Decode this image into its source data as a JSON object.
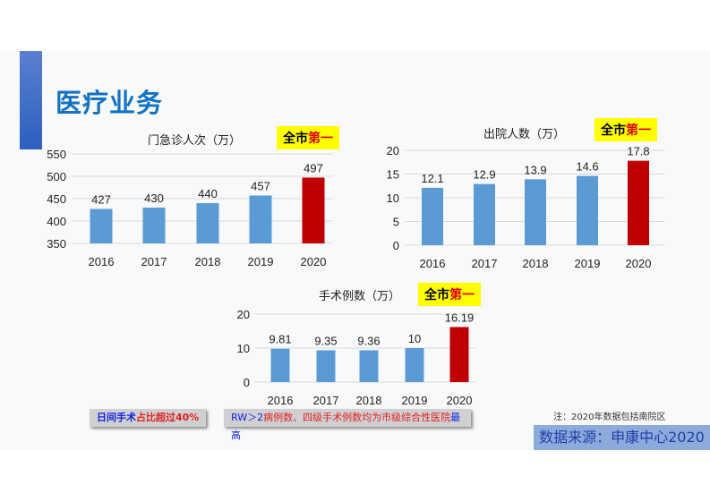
{
  "title": "医疗业务",
  "badge": {
    "part1": "全市",
    "part2": "第一"
  },
  "colors": {
    "normal": "#5b9bd5",
    "highlight": "#c00000"
  },
  "chart_data": [
    {
      "type": "bar",
      "title": "门急诊人次（万）",
      "categories": [
        "2016",
        "2017",
        "2018",
        "2019",
        "2020"
      ],
      "values": [
        427,
        430,
        440,
        457,
        497
      ],
      "labels": [
        "427",
        "430",
        "440",
        "457",
        "497"
      ],
      "ylim": [
        350,
        550
      ],
      "yticks": [
        "350",
        "400",
        "450",
        "500",
        "550"
      ],
      "ytick_values": [
        350,
        400,
        450,
        500,
        550
      ]
    },
    {
      "type": "bar",
      "title": "出院人数（万）",
      "categories": [
        "2016",
        "2017",
        "2018",
        "2019",
        "2020"
      ],
      "values": [
        12.1,
        12.9,
        13.9,
        14.6,
        17.8
      ],
      "labels": [
        "12.1",
        "12.9",
        "13.9",
        "14.6",
        "17.8"
      ],
      "ylim": [
        0,
        20
      ],
      "yticks": [
        "0",
        "5",
        "10",
        "15",
        "20"
      ],
      "ytick_values": [
        0,
        5,
        10,
        15,
        20
      ]
    },
    {
      "type": "bar",
      "title": "手术例数（万）",
      "categories": [
        "2016",
        "2017",
        "2018",
        "2019",
        "2020"
      ],
      "values": [
        9.81,
        9.35,
        9.36,
        10,
        16.19
      ],
      "labels": [
        "9.81",
        "9.35",
        "9.36",
        "10",
        "16.19"
      ],
      "ylim": [
        0,
        20
      ],
      "yticks": [
        "0",
        "10",
        "20"
      ],
      "ytick_values": [
        0,
        10,
        20
      ]
    }
  ],
  "box1": {
    "a": "日间手术",
    "b": "占比超过40%"
  },
  "box2": {
    "a": "RW＞2",
    "b": "病例数、四级手术例数均为市级综合性医院",
    "c": "最高"
  },
  "note": "注：2020年数据包括南院区",
  "source": "数据来源：申康中心2020"
}
